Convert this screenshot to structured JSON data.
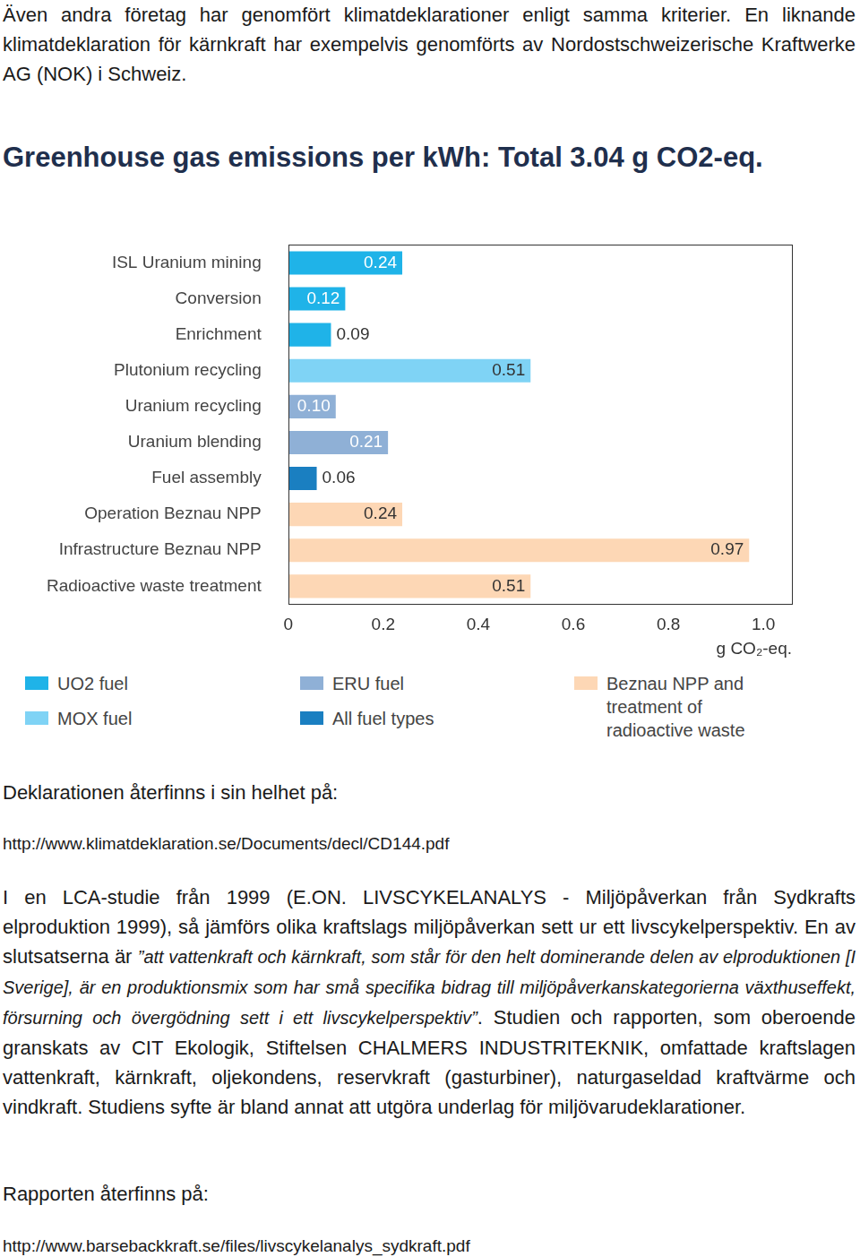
{
  "document": {
    "intro": "Även andra företag har genomfört klimatdeklarationer enligt samma kriterier. En liknande klimatdeklaration för kärnkraft har exempelvis genomförts av Nordost­schweizerische Kraftwerke AG (NOK) i Schweiz.",
    "declaration_text": "Deklarationen återfinns i sin helhet på:",
    "declaration_url": "http://www.klimatdeklaration.se/Documents/decl/CD144.pdf",
    "study_paragraph": [
      {
        "text": "I en LCA-studie från 1999 (E.ON. LIVSCYKELANALYS - Miljöpåverkan från Sydkrafts elproduktion 1999), så jämförs olika kraftslags miljöpåverkan sett ur ett livscykelperspektiv. En av slutsatserna är ",
        "italic": false
      },
      {
        "text": "”att vattenkraft och kärnkraft, som står för den helt dominerande delen av elproduktionen [I Sverige], är en produktionsmix som har små specifika bidrag till miljöpåverkanskategorierna växthuseffekt, försurning och övergödning sett i ett livscykelperspektiv”",
        "italic": true
      },
      {
        "text": ". Studien och rapporten, som oberoende granskats av CIT Ekologik, Stiftelsen CHALMERS INDUSTRITEKNIK, omfattade kraftslagen vattenkraft, kärnkraft, oljekondens, reservkraft (gasturbiner), naturgaseldad kraftvärme och vindkraft. Studiens syfte är bland annat att utgöra underlag för miljövarudeklarationer.",
        "italic": false
      }
    ],
    "report_text": "Rapporten återfinns på:",
    "report_url": "http://www.barsebackkraft.se/files/livscykelanalys_sydkraft.pdf"
  },
  "chart_data": {
    "type": "bar",
    "title": "Greenhouse gas emissions per kWh: Total 3.04 g CO2-eq.",
    "orientation": "horizontal",
    "stacked": true,
    "categories": [
      "ISL Uranium mining",
      "Conversion",
      "Enrichment",
      "Plutonium recycling",
      "Uranium recycling",
      "Uranium blending",
      "Fuel assembly",
      "Operation Beznau NPP",
      "Infrastructure Beznau NPP",
      "Radioactive waste treatment"
    ],
    "series": [
      {
        "name": "UO2 fuel",
        "color": "#1fb3e8",
        "values": [
          0.24,
          0.12,
          0.09,
          null,
          null,
          null,
          null,
          null,
          null,
          null
        ]
      },
      {
        "name": "MOX fuel",
        "color": "#7fd3f5",
        "values": [
          null,
          null,
          null,
          0.51,
          null,
          null,
          null,
          null,
          null,
          null
        ]
      },
      {
        "name": "ERU fuel",
        "color": "#8fb0d6",
        "values": [
          null,
          null,
          null,
          null,
          0.1,
          0.21,
          null,
          null,
          null,
          null
        ],
        "value_labels": [
          null,
          null,
          null,
          null,
          "0.10",
          "0.21",
          null,
          null,
          null,
          null
        ]
      },
      {
        "name": "All fuel types",
        "color": "#1a7fc1",
        "values": [
          null,
          null,
          null,
          null,
          null,
          null,
          0.06,
          null,
          null,
          null
        ]
      },
      {
        "name": "Beznau NPP and treatment of radioactive waste",
        "color": "#fdd7b5",
        "values": [
          null,
          null,
          null,
          null,
          null,
          null,
          null,
          0.24,
          0.97,
          0.51
        ]
      }
    ],
    "x_label": "g CO₂-eq.",
    "xlim": [
      0,
      1.06
    ],
    "xticks": [
      0,
      0.2,
      0.4,
      0.6,
      0.8,
      {
        "value": 1,
        "label": "1.0"
      }
    ],
    "grid": false,
    "data_labels": true,
    "legend": "bottom"
  }
}
